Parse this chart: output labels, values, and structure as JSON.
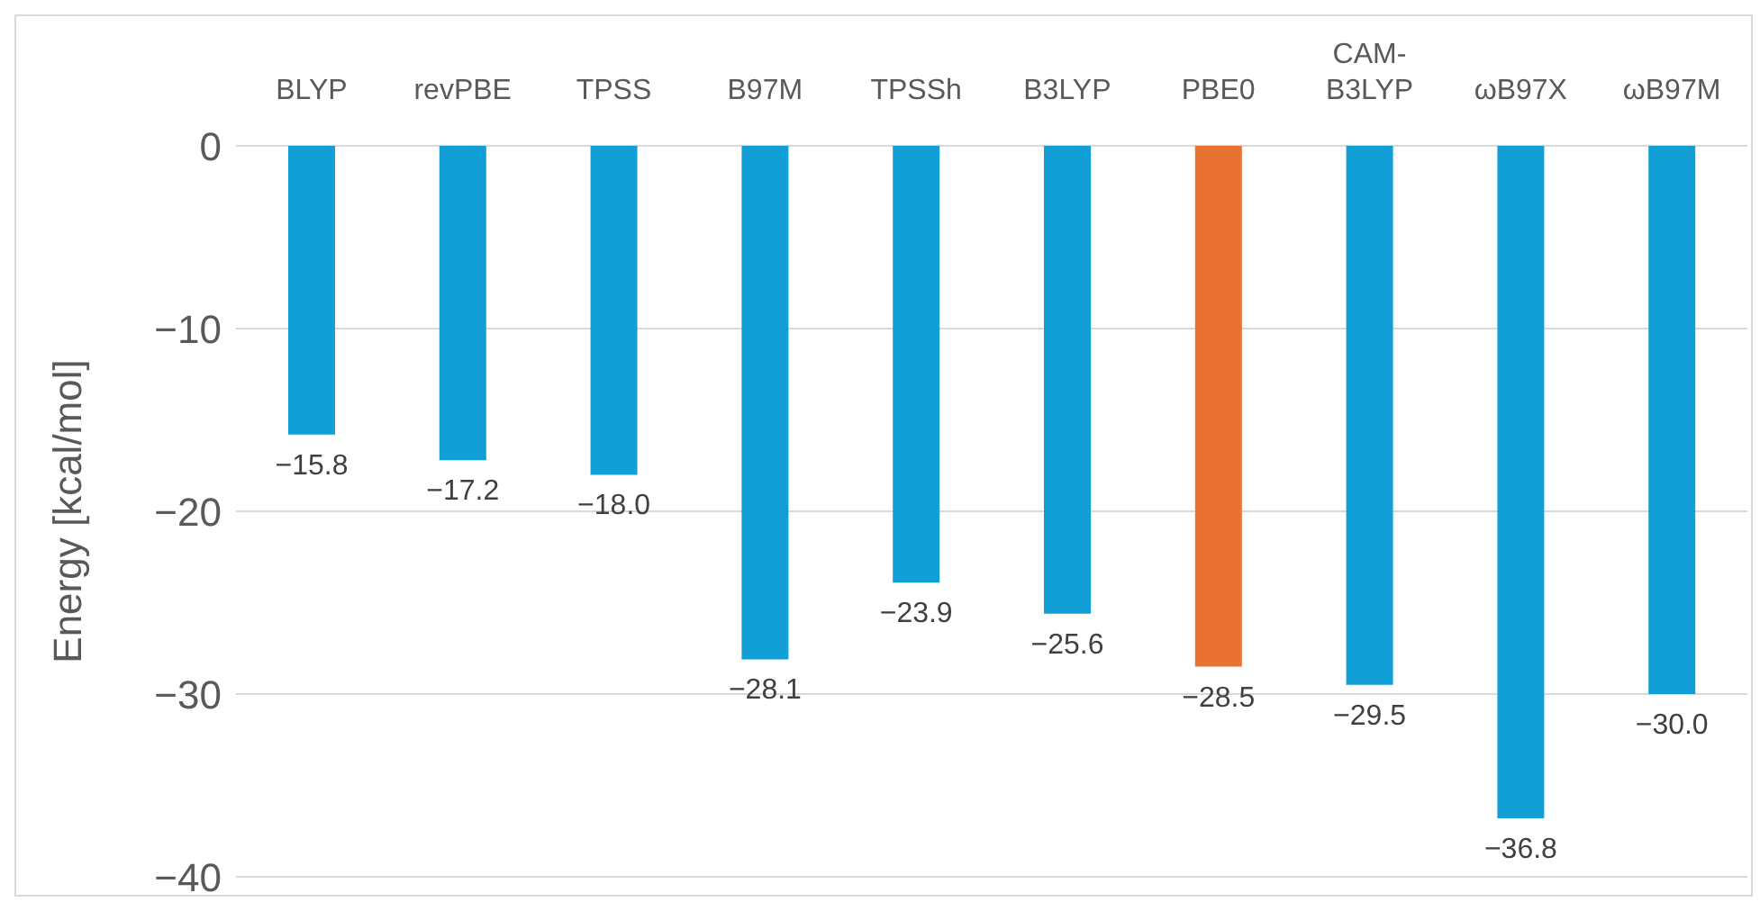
{
  "chart_data": {
    "type": "bar",
    "ylabel": "Energy [kcal/mol]",
    "categories": [
      "BLYP",
      "revPBE",
      "TPSS",
      "B97M",
      "TPSSh",
      "B3LYP",
      "PBE0",
      "CAM-B3LYP",
      "ωB97X",
      "ωB97M"
    ],
    "values": [
      -15.8,
      -17.2,
      -18.0,
      -28.1,
      -23.9,
      -25.6,
      -28.5,
      -29.5,
      -36.8,
      -30.0
    ],
    "colors": [
      "#129fd6",
      "#129fd6",
      "#129fd6",
      "#129fd6",
      "#129fd6",
      "#129fd6",
      "#e97132",
      "#129fd6",
      "#129fd6",
      "#129fd6"
    ],
    "value_labels": [
      "−15.8",
      "−17.2",
      "−18.0",
      "−28.1",
      "−23.9",
      "−25.6",
      "−28.5",
      "−29.5",
      "−36.8",
      "−30.0"
    ],
    "ylim": [
      -40,
      0
    ],
    "yticks": [
      0,
      -10,
      -20,
      -30,
      -40
    ],
    "grid": "y"
  }
}
